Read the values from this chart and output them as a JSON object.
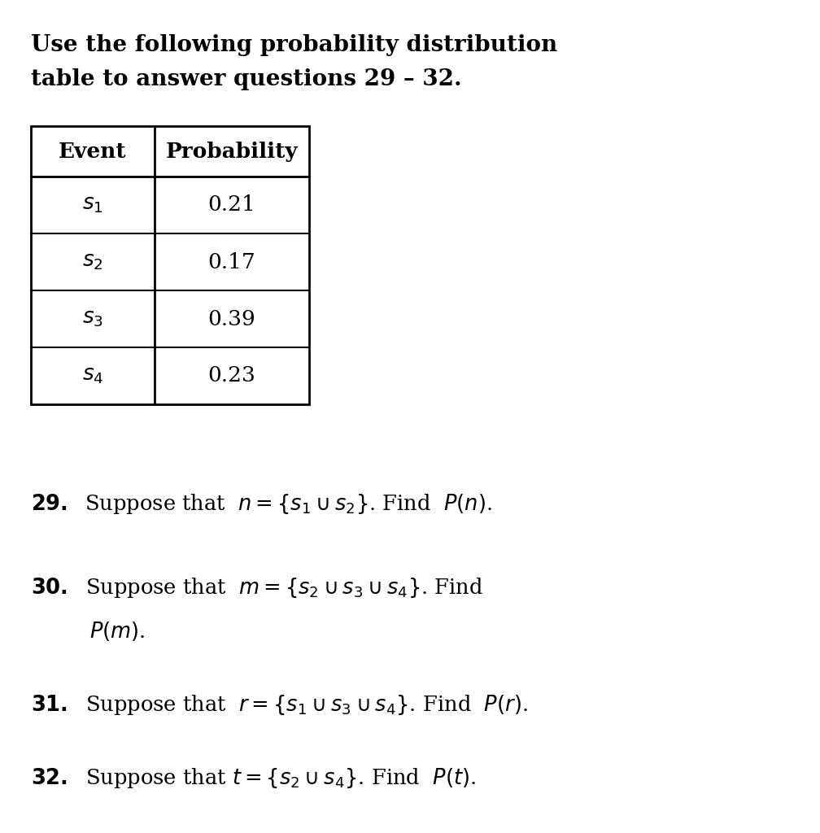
{
  "title_line1": "Use the following probability distribution",
  "title_line2": "table to answer questions 29 – 32.",
  "table_headers": [
    "Event",
    "Probability"
  ],
  "table_events": [
    "$s_1$",
    "$s_2$",
    "$s_3$",
    "$s_4$"
  ],
  "table_probs": [
    "0.21",
    "0.17",
    "0.39",
    "0.23"
  ],
  "bg_color": "#ffffff",
  "text_color": "#000000",
  "table_border_color": "#000000",
  "title_fontsize": 20,
  "body_fontsize": 18.5,
  "table_header_fontsize": 19,
  "table_cell_fontsize": 18,
  "fig_width": 10.08,
  "fig_height": 10.24,
  "dpi": 100
}
